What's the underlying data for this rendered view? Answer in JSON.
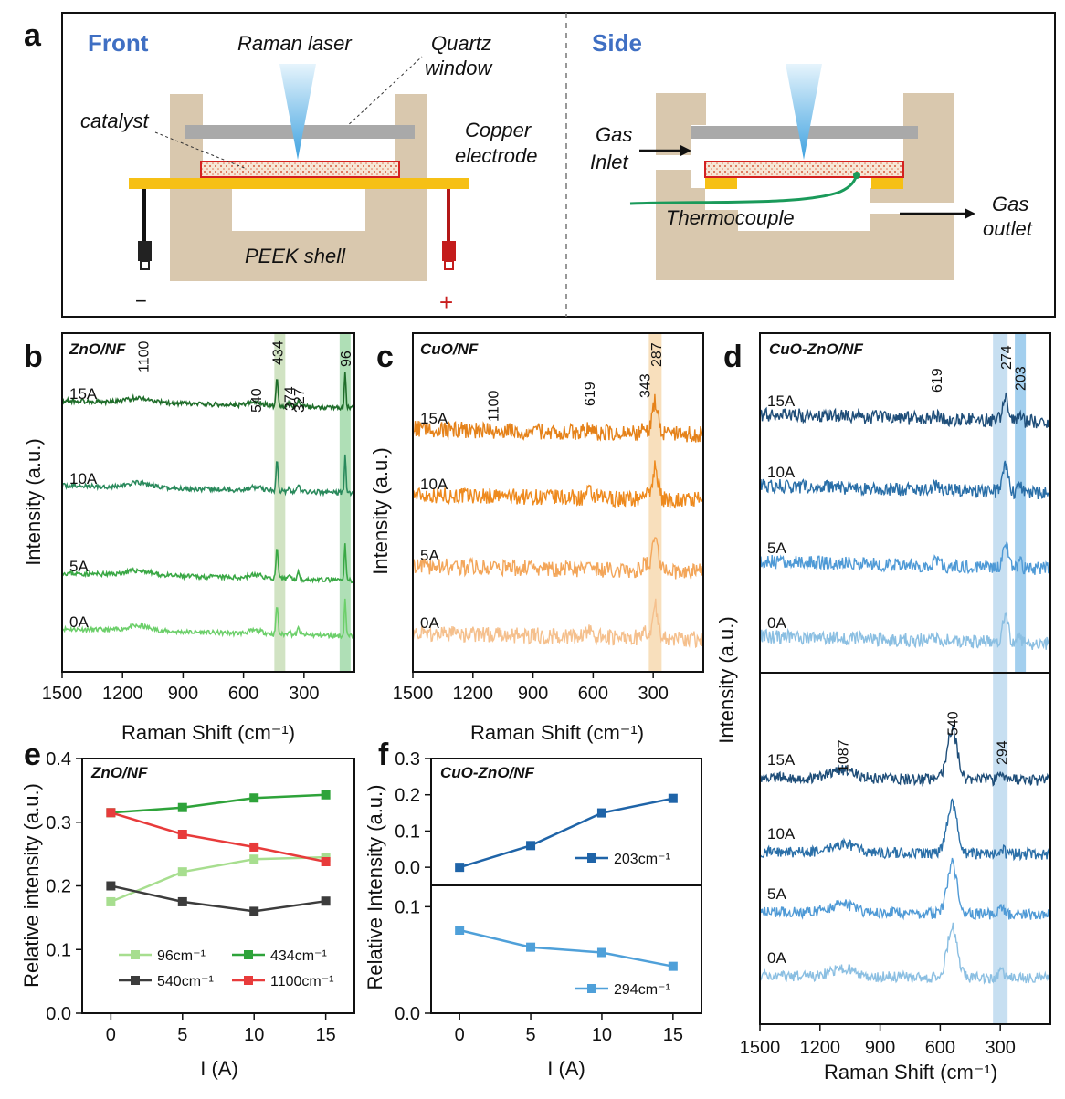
{
  "panel_a": {
    "label": "a",
    "front_title": "Front",
    "side_title": "Side",
    "raman_laser": "Raman laser",
    "quartz_window": "Quartz window",
    "quartz_line1": "Quartz",
    "quartz_line2": "window",
    "catalyst": "catalyst",
    "copper_line1": "Copper",
    "copper_line2": "electrode",
    "peek_shell": "PEEK shell",
    "minus": "−",
    "plus": "+",
    "gas_inlet_line1": "Gas",
    "gas_inlet_line2": "Inlet",
    "thermocouple": "Thermocouple",
    "gas_outlet_line1": "Gas",
    "gas_outlet_line2": "outlet",
    "colors": {
      "shell": "#d9c8ae",
      "window": "#a9a9a9",
      "catalyst_border": "#d42020",
      "copper": "#f6c015",
      "laser": "#5fb3e6",
      "thermocouple": "#1a9a5a"
    }
  },
  "chart_data": [
    {
      "id": "b",
      "label": "b",
      "type": "line",
      "title": "ZnO/NF",
      "xlabel": "Raman Shift (cm⁻¹)",
      "ylabel": "Intensity (a.u.)",
      "xlim": [
        1500,
        50
      ],
      "xticks": [
        1500,
        1200,
        900,
        600,
        300
      ],
      "series": [
        {
          "name": "0A",
          "color": "#6ccf6a"
        },
        {
          "name": "5A",
          "color": "#3aa845"
        },
        {
          "name": "10A",
          "color": "#2a8a5c"
        },
        {
          "name": "15A",
          "color": "#1f6d2a"
        }
      ],
      "peaks": [
        {
          "pos": 1100,
          "label": "1100"
        },
        {
          "pos": 540,
          "label": "540"
        },
        {
          "pos": 434,
          "label": "434"
        },
        {
          "pos": 374,
          "label": "374"
        },
        {
          "pos": 327,
          "label": "327"
        },
        {
          "pos": 96,
          "label": "96"
        }
      ],
      "bands": [
        {
          "pos": 420,
          "color": "#c5dcb4"
        },
        {
          "pos": 96,
          "color": "#9bd7a4"
        }
      ]
    },
    {
      "id": "c",
      "label": "c",
      "type": "line",
      "title": "CuO/NF",
      "xlabel": "Raman Shift (cm⁻¹)",
      "ylabel": "Intensity (a.u.)",
      "xlim": [
        1500,
        50
      ],
      "xticks": [
        1500,
        1200,
        900,
        600,
        300
      ],
      "series": [
        {
          "name": "0A",
          "color": "#f5c08d"
        },
        {
          "name": "5A",
          "color": "#f3a65a"
        },
        {
          "name": "10A",
          "color": "#ee8a1e"
        },
        {
          "name": "15A",
          "color": "#e5821a"
        }
      ],
      "peaks": [
        {
          "pos": 1100,
          "label": "1100"
        },
        {
          "pos": 619,
          "label": "619"
        },
        {
          "pos": 343,
          "label": "343"
        },
        {
          "pos": 287,
          "label": "287"
        }
      ],
      "bands": [
        {
          "pos": 290,
          "color": "#f7dcb5"
        }
      ]
    },
    {
      "id": "d",
      "label": "d",
      "type": "line",
      "title": "CuO-ZnO/NF",
      "xlabel": "Raman Shift (cm⁻¹)",
      "ylabel": "Intensity (a.u.)",
      "xlim": [
        1500,
        50
      ],
      "xticks": [
        1500,
        1200,
        900,
        600,
        300
      ],
      "series": [
        {
          "name": "0A",
          "color": "#8bbfe2"
        },
        {
          "name": "5A",
          "color": "#4f9ad6"
        },
        {
          "name": "10A",
          "color": "#2a6fa8"
        },
        {
          "name": "15A",
          "color": "#1f4e79"
        }
      ],
      "top_peaks": [
        {
          "pos": 619,
          "label": "619"
        },
        {
          "pos": 274,
          "label": "274"
        },
        {
          "pos": 203,
          "label": "203"
        }
      ],
      "bottom_peaks": [
        {
          "pos": 1087,
          "label": "1087"
        },
        {
          "pos": 540,
          "label": "540"
        },
        {
          "pos": 294,
          "label": "294"
        }
      ]
    },
    {
      "id": "e",
      "label": "e",
      "type": "line",
      "title": "ZnO/NF",
      "xlabel": "I (A)",
      "ylabel": "Relative intensity (a.u.)",
      "x": [
        0,
        5,
        10,
        15
      ],
      "xlim": [
        -2,
        17
      ],
      "ylim": [
        0,
        0.4
      ],
      "yticks": [
        0.0,
        0.1,
        0.2,
        0.3,
        0.4
      ],
      "xticks": [
        0,
        5,
        10,
        15
      ],
      "series": [
        {
          "name": "96cm⁻¹",
          "color": "#a7de8f",
          "values": [
            0.175,
            0.222,
            0.242,
            0.245
          ]
        },
        {
          "name": "434cm⁻¹",
          "color": "#2ea33a",
          "values": [
            0.315,
            0.323,
            0.338,
            0.343
          ]
        },
        {
          "name": "540cm⁻¹",
          "color": "#3c3c3c",
          "values": [
            0.2,
            0.175,
            0.16,
            0.176
          ]
        },
        {
          "name": "1100cm⁻¹",
          "color": "#e83b3b",
          "values": [
            0.315,
            0.281,
            0.261,
            0.238
          ]
        }
      ]
    },
    {
      "id": "f",
      "label": "f",
      "type": "line",
      "title": "CuO-ZnO/NF",
      "xlabel": "I (A)",
      "ylabel": "Relative Intensity (a.u.)",
      "x": [
        0,
        5,
        10,
        15
      ],
      "xlim": [
        -2,
        17
      ],
      "xticks": [
        0,
        5,
        10,
        15
      ],
      "top": {
        "ylim": [
          -0.05,
          0.3
        ],
        "yticks": [
          0.0,
          0.1,
          0.2,
          0.3
        ],
        "series": [
          {
            "name": "203cm⁻¹",
            "color": "#1f64a8",
            "values": [
              0.0,
              0.06,
              0.15,
              0.19
            ]
          }
        ]
      },
      "bottom": {
        "ylim": [
          0,
          0.12
        ],
        "yticks": [
          0.0,
          0.1
        ],
        "series": [
          {
            "name": "294cm⁻¹",
            "color": "#4fa0d9",
            "values": [
              0.078,
              0.062,
              0.057,
              0.044
            ]
          }
        ]
      }
    }
  ]
}
